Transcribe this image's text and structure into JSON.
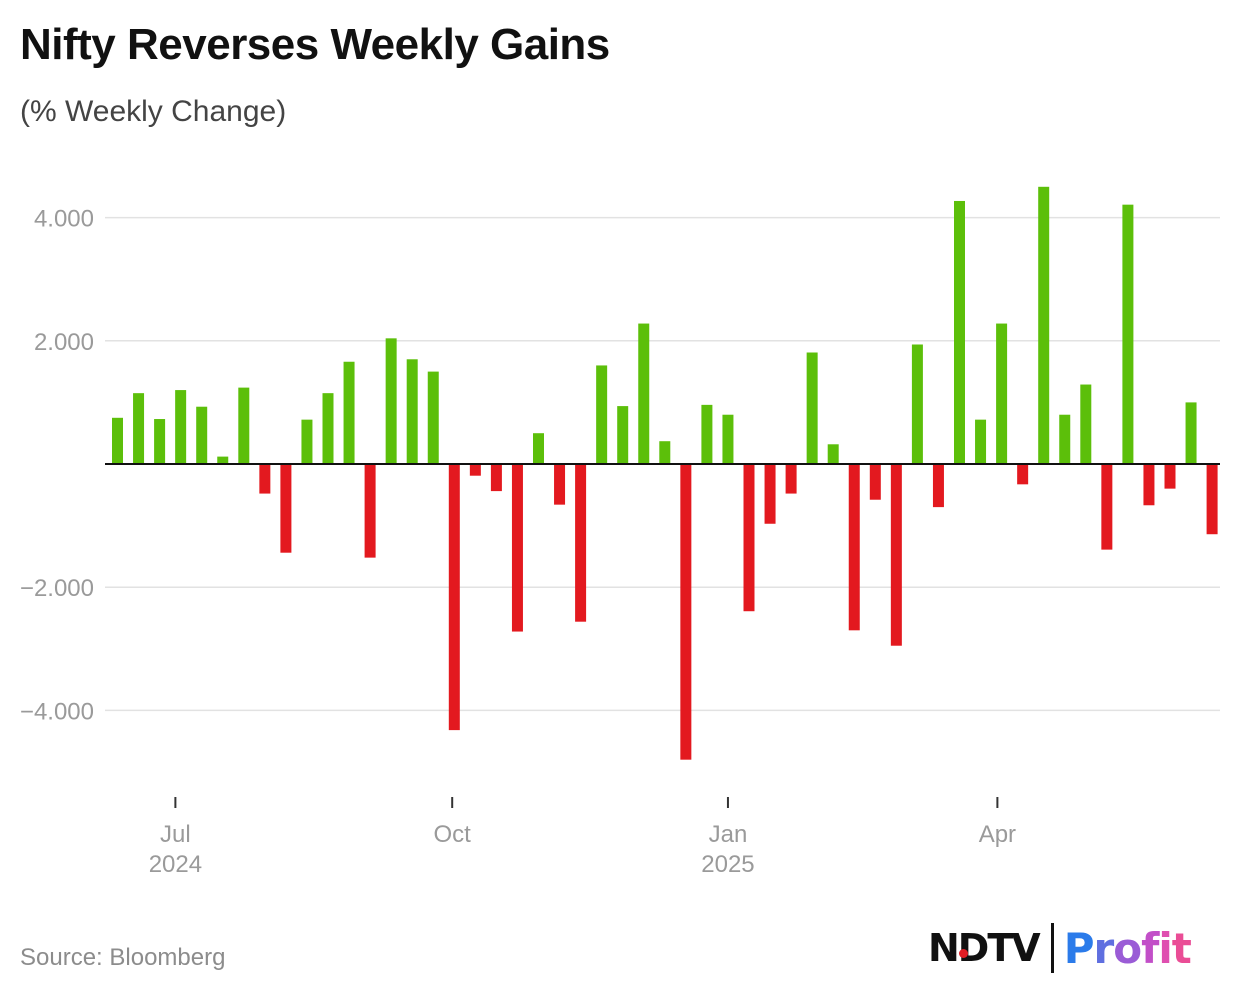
{
  "header": {
    "title": "Nifty Reverses Weekly Gains",
    "subtitle": "(% Weekly Change)"
  },
  "footer": {
    "source": "Source: Bloomberg",
    "brand_left": "NDTV",
    "brand_right": "Profit"
  },
  "colors": {
    "positive": "#5cbf0a",
    "negative": "#e3191f",
    "grid": "#e2e2e2",
    "axis_text": "#9a9a9a"
  },
  "chart_data": {
    "type": "bar",
    "title": "Nifty Reverses Weekly Gains",
    "subtitle": "(% Weekly Change)",
    "ylim": [
      -5.0,
      4.6
    ],
    "y_ticks": [
      4.0,
      2.0,
      -2.0,
      -4.0
    ],
    "y_tick_labels": [
      "4.000",
      "2.000",
      "−2.000",
      "−4.000"
    ],
    "grid": true,
    "x_ticks": [
      {
        "index": 2.75,
        "label": "Jul",
        "sublabel": "2024"
      },
      {
        "index": 15.9,
        "label": "Oct",
        "sublabel": ""
      },
      {
        "index": 29.0,
        "label": "Jan",
        "sublabel": "2025"
      },
      {
        "index": 41.8,
        "label": "Apr",
        "sublabel": ""
      }
    ],
    "values": [
      0.75,
      1.15,
      0.73,
      1.2,
      0.93,
      0.12,
      1.24,
      -0.48,
      -1.44,
      0.72,
      1.15,
      1.66,
      -1.52,
      2.04,
      1.7,
      1.5,
      -4.32,
      -0.19,
      -0.44,
      -2.72,
      0.5,
      -0.66,
      -2.56,
      1.6,
      0.94,
      2.28,
      0.37,
      -4.8,
      0.96,
      0.8,
      -2.39,
      -0.97,
      -0.48,
      1.81,
      0.32,
      -2.7,
      -0.58,
      -2.95,
      1.94,
      -0.7,
      4.27,
      0.72,
      2.28,
      -0.33,
      4.5,
      0.8,
      1.29,
      -1.39,
      4.21,
      -0.67,
      -0.4,
      1.0,
      -1.14
    ]
  }
}
